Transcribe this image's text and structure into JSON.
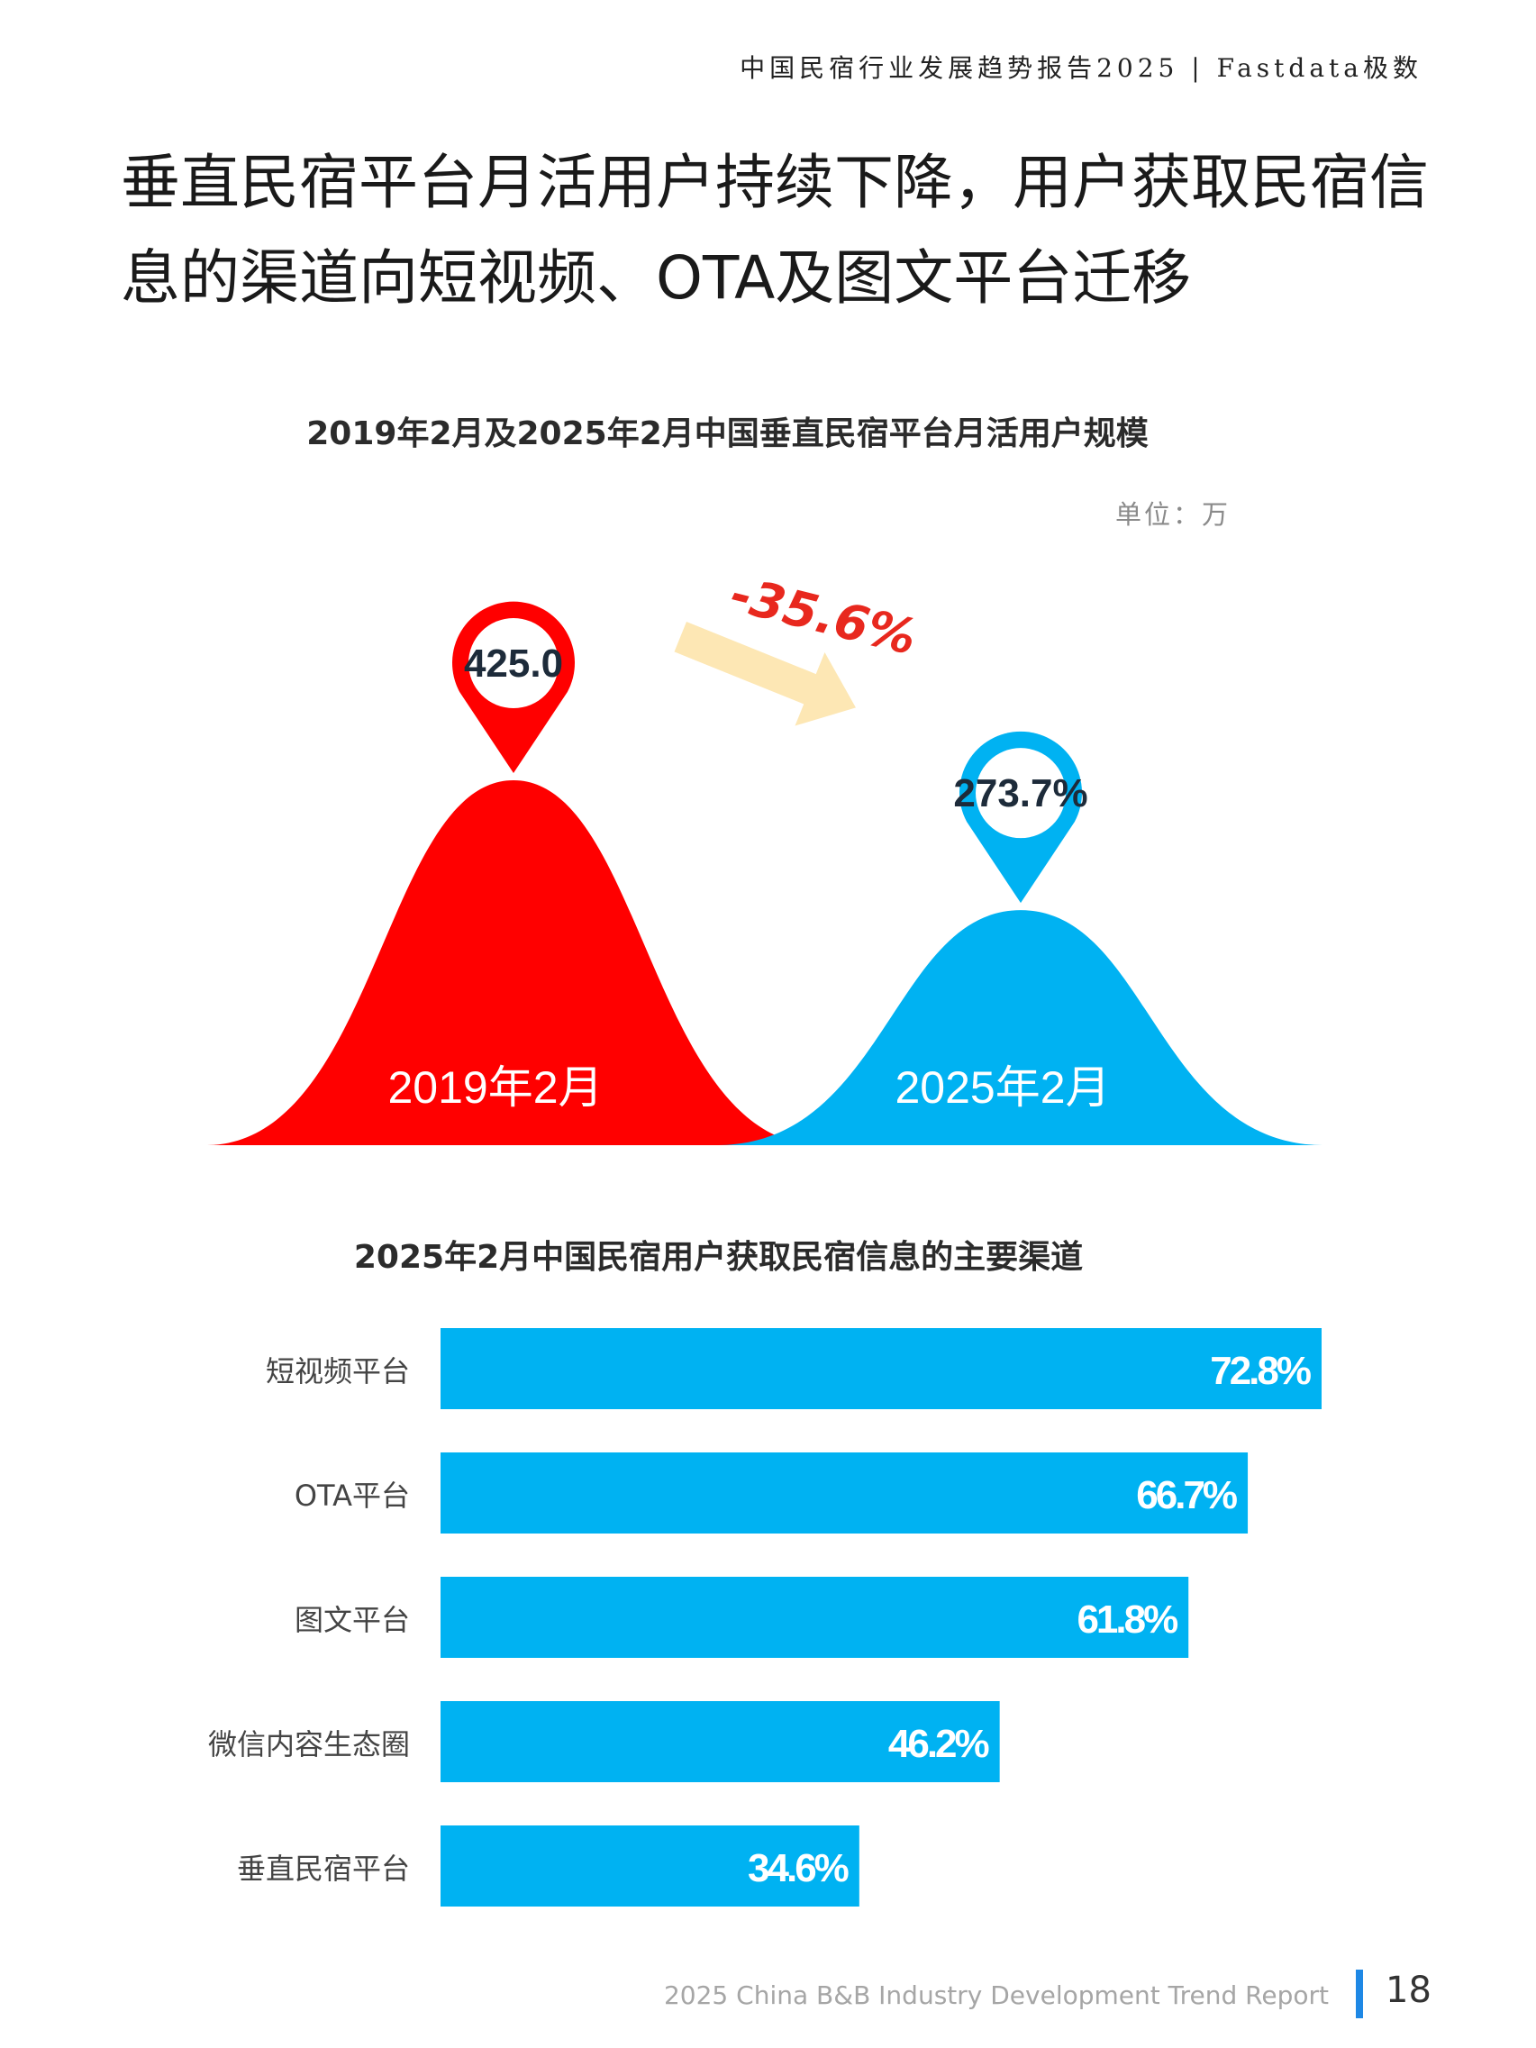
{
  "header": {
    "report_line": "中国民宿行业发展趋势报告2025 | Fastdata极数"
  },
  "page_title": "垂直民宿平台月活用户持续下降，用户获取民宿信息的渠道向短视频、OTA及图文平台迁移",
  "colors": {
    "red": "#ff0000",
    "blue": "#00b2f2",
    "arrow": "#fde7b4",
    "change_text": "#e8281e",
    "footer_accent": "#1e88e5"
  },
  "chart_data": [
    {
      "type": "area",
      "title": "2019年2月及2025年2月中国垂直民宿平台月活用户规模",
      "unit_label": "单位：万",
      "categories": [
        "2019年2月",
        "2025年2月"
      ],
      "values": [
        425.0,
        273.7
      ],
      "value_labels": [
        "425.0",
        "273.7%"
      ],
      "change_label": "-35.6%"
    },
    {
      "type": "bar",
      "title": "2025年2月中国民宿用户获取民宿信息的主要渠道",
      "categories": [
        "短视频平台",
        "OTA平台",
        "图文平台",
        "微信内容生态圈",
        "垂直民宿平台"
      ],
      "values": [
        72.8,
        66.7,
        61.8,
        46.2,
        34.6
      ],
      "value_labels": [
        "72.8%",
        "66.7%",
        "61.8%",
        "46.2%",
        "34.6%"
      ],
      "xlim": [
        0,
        100
      ]
    }
  ],
  "footer": {
    "text": "2025 China B&B Industry Development Trend Report",
    "page_number": "18"
  }
}
